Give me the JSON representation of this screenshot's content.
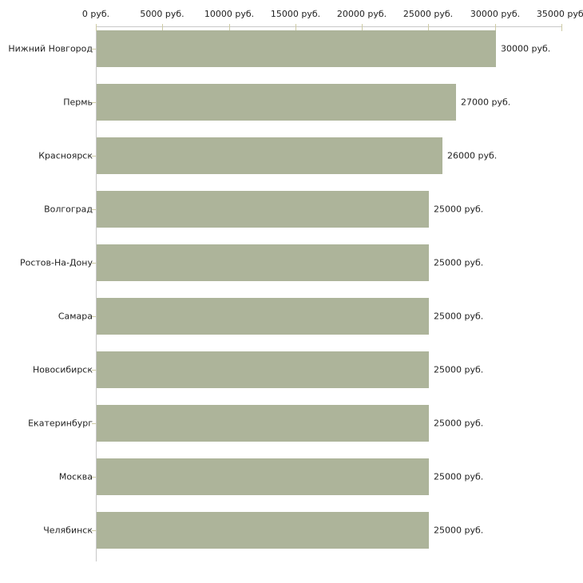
{
  "chart_data": {
    "type": "bar",
    "orientation": "horizontal",
    "title": "",
    "xlabel": "",
    "ylabel": "",
    "xlim": [
      0,
      35000
    ],
    "grid": false,
    "legend": null,
    "unit": "руб.",
    "categories": [
      "Нижний Новгород",
      "Пермь",
      "Красноярск",
      "Волгоград",
      "Ростов-На-Дону",
      "Самара",
      "Новосибирск",
      "Екатеринбург",
      "Москва",
      "Челябинск"
    ],
    "values": [
      30000,
      27000,
      26000,
      25000,
      25000,
      25000,
      25000,
      25000,
      25000,
      25000
    ],
    "value_labels": [
      "30000 руб.",
      "27000 руб.",
      "26000 руб.",
      "25000 руб.",
      "25000 руб.",
      "25000 руб.",
      "25000 руб.",
      "25000 руб.",
      "25000 руб.",
      "25000 руб."
    ],
    "x_ticks": [
      0,
      5000,
      10000,
      15000,
      20000,
      25000,
      30000,
      35000
    ],
    "x_tick_labels": [
      "0 руб.",
      "5000 руб.",
      "10000 руб.",
      "15000 руб.",
      "20000 руб.",
      "25000 руб.",
      "30000 руб.",
      "35000 руб."
    ],
    "colors": {
      "bar": "#adb49a",
      "axis_line": "#c8c8c8",
      "tick": "#cecba4",
      "text": "#222222",
      "background": "#ffffff"
    }
  }
}
